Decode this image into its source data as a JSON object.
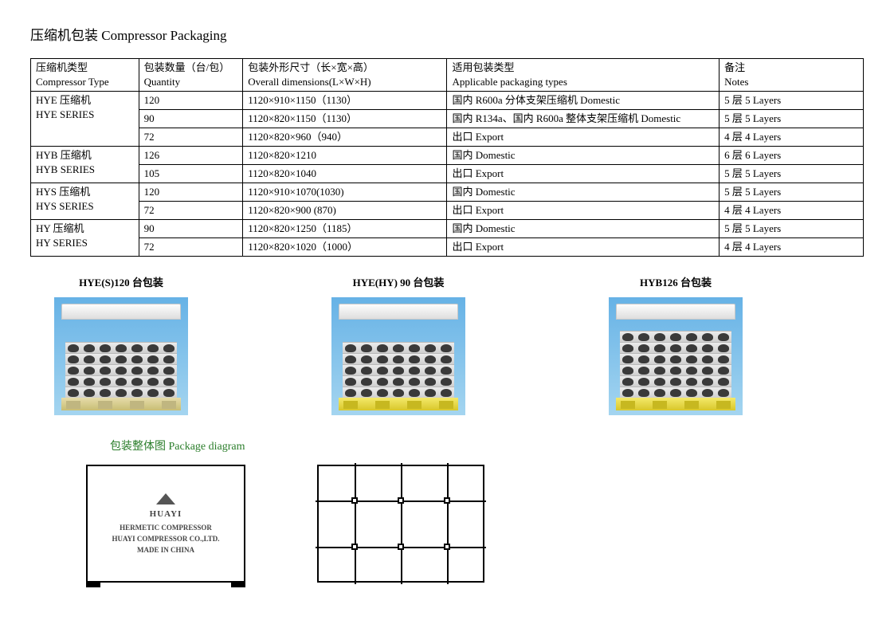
{
  "title": "压缩机包装  Compressor Packaging",
  "table": {
    "headers": {
      "type_cn": "压缩机类型",
      "type_en": "Compressor   Type",
      "qty_cn": "包装数量（台/包）",
      "qty_en": "Quantity",
      "dim_cn": "包装外形尺寸（长×宽×高）",
      "dim_en": "Overall dimensions(L×W×H)",
      "app_cn": "适用包装类型",
      "app_en": "Applicable packaging types",
      "notes_cn": "备注",
      "notes_en": "Notes"
    },
    "groups": [
      {
        "type_cn": "HYE 压缩机",
        "type_en": "HYE SERIES",
        "rows": [
          {
            "qty": "120",
            "dim": "1120×910×1150（1130）",
            "app": "国内 R600a 分体支架压缩机                         Domestic",
            "notes": "5 层  5 Layers"
          },
          {
            "qty": "90",
            "dim": "1120×820×1150（1130）",
            "app": "国内 R134a、国内 R600a 整体支架压缩机    Domestic",
            "notes": "5 层  5 Layers"
          },
          {
            "qty": "72",
            "dim": "1120×820×960（940）",
            "app": "出口    Export",
            "notes": "4 层  4 Layers"
          }
        ]
      },
      {
        "type_cn": "HYB 压缩机",
        "type_en": "HYB SERIES",
        "rows": [
          {
            "qty": "126",
            "dim": "1120×820×1210",
            "app": "国内    Domestic",
            "notes": "6 层  6 Layers"
          },
          {
            "qty": "105",
            "dim": "1120×820×1040",
            "app": "出口    Export",
            "notes": "5 层  5 Layers"
          }
        ]
      },
      {
        "type_cn": "HYS 压缩机",
        "type_en": "HYS SERIES",
        "rows": [
          {
            "qty": "120",
            "dim": "1120×910×1070(1030)",
            "app": "国内    Domestic",
            "notes": "5 层  5 Layers"
          },
          {
            "qty": "72",
            "dim": "1120×820×900 (870)",
            "app": "出口    Export",
            "notes": "4 层  4 Layers"
          }
        ]
      },
      {
        "type_cn": "HY 压缩机",
        "type_en": "HY SERIES",
        "rows": [
          {
            "qty": "90",
            "dim": "1120×820×1250（1185）",
            "app": "国内    Domestic",
            "notes": "5 层  5 Layers"
          },
          {
            "qty": "72",
            "dim": "1120×820×1020（1000）",
            "app": "出口    Export",
            "notes": "4 层  4 Layers"
          }
        ]
      }
    ]
  },
  "pallets": [
    {
      "caption": "HYE(S)120 台包装",
      "layers": 5,
      "base": "tan"
    },
    {
      "caption": "HYE(HY) 90 台包装",
      "layers": 5,
      "base": "yellow"
    },
    {
      "caption": "HYB126 台包装",
      "layers": 6,
      "base": "yellow"
    }
  ],
  "package_diagram_title": "包装整体图  Package diagram",
  "box_label": {
    "brand": "HUAYI",
    "line1": "HERMETIC COMPRESSOR",
    "line2": "HUAYI COMPRESSOR CO.,LTD.",
    "line3": "MADE IN CHINA"
  },
  "strap": {
    "v_positions_pct": [
      22,
      50,
      78
    ],
    "h_positions_pct": [
      30,
      70
    ]
  }
}
